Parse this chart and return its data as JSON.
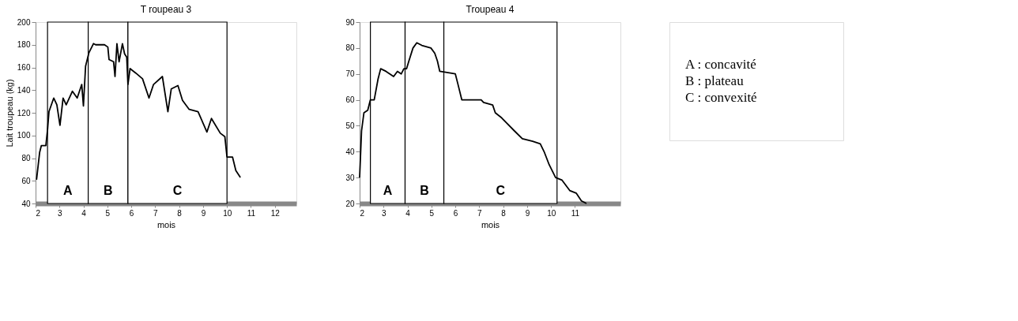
{
  "chart_data": [
    {
      "type": "line",
      "title": "T roupeau 3",
      "xlabel": "mois",
      "ylabel": "Lait troupeau (kg)",
      "x": [
        2.04,
        2.17,
        2.24,
        2.43,
        2.5,
        2.56,
        2.76,
        2.89,
        3.02,
        3.15,
        3.28,
        3.54,
        3.74,
        3.93,
        4.0,
        4.09,
        4.23,
        4.42,
        4.51,
        4.88,
        5.02,
        5.07,
        5.26,
        5.32,
        5.4,
        5.49,
        5.63,
        5.72,
        5.81,
        5.86,
        5.95,
        6.19,
        6.47,
        6.74,
        6.93,
        7.3,
        7.53,
        7.67,
        7.95,
        8.14,
        8.42,
        8.79,
        9.16,
        9.35,
        9.72,
        9.91,
        10.0,
        10.23,
        10.37,
        10.56
      ],
      "series": [
        {
          "color": "#000000",
          "values": [
            61,
            85,
            91,
            91,
            105,
            121,
            133,
            127,
            109,
            133,
            127,
            139,
            133,
            145,
            126,
            161,
            173,
            181,
            180,
            180,
            178,
            167,
            165,
            152,
            181,
            165,
            181,
            172,
            169,
            145,
            159,
            155,
            150,
            133,
            145,
            152,
            121,
            141,
            144,
            131,
            123,
            121,
            103,
            115,
            102,
            99,
            81,
            81,
            69,
            63
          ]
        }
      ],
      "xlim": [
        2,
        12.9
      ],
      "xticks": [
        2,
        3,
        4,
        5,
        6,
        7,
        8,
        9,
        10,
        11,
        12
      ],
      "ylim": [
        40,
        200
      ],
      "yticks": [
        40,
        60,
        80,
        100,
        120,
        140,
        160,
        180,
        200
      ],
      "bands": [
        {
          "axis": "x",
          "from": 2.5,
          "to": 4.2,
          "label": "A",
          "color": "#ffffff"
        },
        {
          "axis": "x",
          "from": 4.2,
          "to": 5.86,
          "label": "B",
          "color": "#ffffff"
        },
        {
          "axis": "x",
          "from": 5.86,
          "to": 10.0,
          "label": "C",
          "color": "#ffffff"
        }
      ],
      "grid": false
    },
    {
      "type": "line",
      "title": "Troupeau 4",
      "xlabel": "mois",
      "x": [
        2.0,
        2.08,
        2.18,
        2.34,
        2.45,
        2.61,
        2.77,
        2.88,
        3.1,
        3.42,
        3.58,
        3.74,
        3.85,
        3.96,
        4.06,
        4.23,
        4.39,
        4.6,
        4.98,
        5.14,
        5.25,
        5.35,
        6.0,
        6.11,
        6.27,
        7.08,
        7.18,
        7.56,
        7.67,
        7.94,
        8.15,
        8.47,
        8.8,
        9.23,
        9.55,
        9.71,
        9.92,
        10.19,
        10.46,
        10.78,
        11.05,
        11.27,
        11.48
      ],
      "series": [
        {
          "color": "#000000",
          "values": [
            30,
            48,
            55,
            56,
            60,
            60,
            68,
            72,
            71,
            69,
            71,
            70,
            72,
            72,
            75,
            80,
            82,
            81,
            80,
            78,
            75,
            71,
            70,
            66,
            60,
            60,
            59,
            58,
            55,
            53,
            51,
            48,
            45,
            44,
            43,
            40,
            35,
            30,
            29,
            25,
            24,
            21,
            20
          ]
        }
      ],
      "xlim": [
        2,
        12.9
      ],
      "xticks": [
        2,
        3,
        4,
        5,
        6,
        7,
        8,
        9,
        10,
        11
      ],
      "ylim": [
        20,
        90
      ],
      "yticks": [
        20,
        30,
        40,
        50,
        60,
        70,
        80,
        90
      ],
      "bands": [
        {
          "axis": "x",
          "from": 2.45,
          "to": 3.9,
          "label": "A",
          "color": "#ffffff"
        },
        {
          "axis": "x",
          "from": 3.9,
          "to": 5.52,
          "label": "B",
          "color": "#ffffff"
        },
        {
          "axis": "x",
          "from": 5.52,
          "to": 10.25,
          "label": "C",
          "color": "#ffffff"
        }
      ],
      "grid": false
    },
    {
      "type": "other",
      "annotations": [
        "A : concavité",
        "B : plateau",
        "C : convexité"
      ]
    }
  ]
}
